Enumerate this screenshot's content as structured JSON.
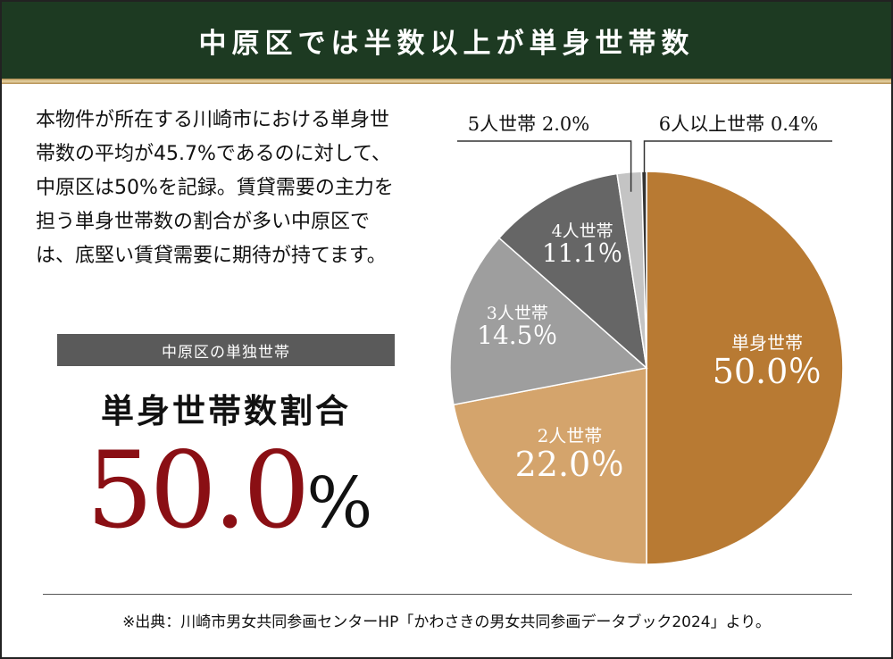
{
  "header": {
    "title": "中原区では半数以上が単身世帯数"
  },
  "description": "本物件が所在する川崎市における単身世帯数の平均が45.7%であるのに対して、中原区は50%を記録。賃貸需要の主力を担う単身世帯数の割合が多い中原区では、底堅い賃貸需要に期待が持てます。",
  "stat": {
    "kicker": "中原区の単独世帯",
    "title": "単身世帯数割合",
    "value": "50.0",
    "unit": "%"
  },
  "source": "※出典：川崎市男女共同参画センターHP「かわさきの男女共同参画データブック2024」より。",
  "colors": {
    "header_bg": "#1d3a22",
    "accent_red": "#8a0f14"
  },
  "chart_data": {
    "type": "pie",
    "slices": [
      {
        "label": "単身世帯",
        "value": 50.0,
        "display": "50.0％",
        "color": "#b87a33"
      },
      {
        "label": "2人世帯",
        "value": 22.0,
        "display": "22.0％",
        "color": "#d4a46c"
      },
      {
        "label": "3人世帯",
        "value": 14.5,
        "display": "14.5％",
        "color": "#9e9e9e"
      },
      {
        "label": "4人世帯",
        "value": 11.1,
        "display": "11.1％",
        "color": "#666666"
      },
      {
        "label": "5人世帯",
        "value": 2.0,
        "display": "2.0%",
        "color": "#c4c4c4"
      },
      {
        "label": "6人以上世帯",
        "value": 0.4,
        "display": "0.4%",
        "color": "#333333"
      }
    ]
  }
}
